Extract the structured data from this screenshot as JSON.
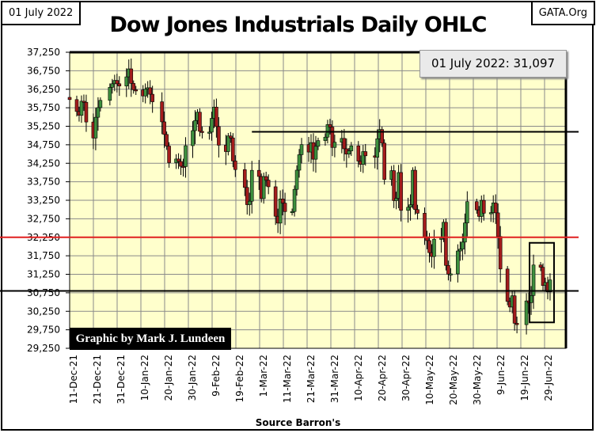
{
  "header": {
    "date_label": "01 July 2022",
    "site": "GATA.Org",
    "title": "Dow Jones Industrials Daily OHLC"
  },
  "footer": {
    "source": "Source Barron's",
    "credit": "Graphic by Mark J. Lundeen"
  },
  "last_value_box": "01 July 2022: 31,097",
  "colors": {
    "background": "#ffffcc",
    "up": "#3d8f3d",
    "down": "#a31c1c",
    "red_line": "#e02020"
  },
  "chart_data": {
    "type": "ohlc",
    "title": "Dow Jones Industrials Daily OHLC",
    "ylim": [
      29250,
      37250
    ],
    "yticks": [
      "37,250",
      "36,750",
      "36,250",
      "35,750",
      "35,250",
      "34,750",
      "34,250",
      "33,750",
      "33,250",
      "32,750",
      "32,250",
      "31,750",
      "31,250",
      "30,750",
      "30,250",
      "29,750",
      "29,250"
    ],
    "xticks": [
      "11-Dec-21",
      "21-Dec-21",
      "31-Dec-21",
      "10-Jan-22",
      "20-Jan-22",
      "30-Jan-22",
      "9-Feb-22",
      "19-Feb-22",
      "1-Mar-22",
      "11-Mar-22",
      "21-Mar-22",
      "31-Mar-22",
      "10-Apr-22",
      "20-Apr-22",
      "30-Apr-22",
      "10-May-22",
      "20-May-22",
      "30-May-22",
      "9-Jun-22",
      "19-Jun-22",
      "29-Jun-22"
    ],
    "grid": true,
    "reference_lines": [
      {
        "value": 35100,
        "color": "black",
        "from": "2022-02-24"
      },
      {
        "value": 32250,
        "color": "red"
      },
      {
        "value": 30800,
        "color": "black"
      }
    ],
    "highlight_box": {
      "from": "2022-06-24",
      "to": "2022-07-01",
      "low": 29950,
      "high": 32100
    },
    "closes": [
      [
        "2021-12-10",
        35971
      ],
      [
        "2021-12-13",
        35650
      ],
      [
        "2021-12-14",
        35545
      ],
      [
        "2021-12-15",
        35927
      ],
      [
        "2021-12-16",
        35898
      ],
      [
        "2021-12-17",
        35365
      ],
      [
        "2021-12-20",
        34932
      ],
      [
        "2021-12-21",
        35493
      ],
      [
        "2021-12-22",
        35754
      ],
      [
        "2021-12-23",
        35950
      ],
      [
        "2021-12-27",
        36302
      ],
      [
        "2021-12-28",
        36398
      ],
      [
        "2021-12-29",
        36488
      ],
      [
        "2021-12-30",
        36398
      ],
      [
        "2021-12-31",
        36338
      ],
      [
        "2022-01-03",
        36585
      ],
      [
        "2022-01-04",
        36800
      ],
      [
        "2022-01-05",
        36408
      ],
      [
        "2022-01-06",
        36236
      ],
      [
        "2022-01-07",
        36232
      ],
      [
        "2022-01-10",
        36069
      ],
      [
        "2022-01-11",
        36252
      ],
      [
        "2022-01-12",
        36290
      ],
      [
        "2022-01-13",
        36114
      ],
      [
        "2022-01-14",
        35912
      ],
      [
        "2022-01-18",
        35369
      ],
      [
        "2022-01-19",
        35029
      ],
      [
        "2022-01-20",
        34715
      ],
      [
        "2022-01-21",
        34265
      ],
      [
        "2022-01-24",
        34365
      ],
      [
        "2022-01-25",
        34298
      ],
      [
        "2022-01-26",
        34168
      ],
      [
        "2022-01-27",
        34160
      ],
      [
        "2022-01-28",
        34725
      ],
      [
        "2022-01-31",
        35132
      ],
      [
        "2022-02-01",
        35405
      ],
      [
        "2022-02-02",
        35630
      ],
      [
        "2022-02-03",
        35112
      ],
      [
        "2022-02-04",
        35090
      ],
      [
        "2022-02-07",
        35092
      ],
      [
        "2022-02-08",
        35463
      ],
      [
        "2022-02-09",
        35768
      ],
      [
        "2022-02-10",
        35242
      ],
      [
        "2022-02-11",
        34738
      ],
      [
        "2022-02-14",
        34566
      ],
      [
        "2022-02-15",
        34988
      ],
      [
        "2022-02-16",
        34935
      ],
      [
        "2022-02-17",
        34312
      ],
      [
        "2022-02-18",
        34079
      ],
      [
        "2022-02-22",
        33597
      ],
      [
        "2022-02-23",
        33132
      ],
      [
        "2022-02-24",
        33224
      ],
      [
        "2022-02-25",
        34059
      ],
      [
        "2022-02-28",
        33893
      ],
      [
        "2022-03-01",
        33295
      ],
      [
        "2022-03-02",
        33891
      ],
      [
        "2022-03-03",
        33795
      ],
      [
        "2022-03-04",
        33615
      ],
      [
        "2022-03-07",
        32818
      ],
      [
        "2022-03-08",
        32633
      ],
      [
        "2022-03-09",
        33286
      ],
      [
        "2022-03-10",
        33174
      ],
      [
        "2022-03-11",
        32944
      ],
      [
        "2022-03-14",
        32946
      ],
      [
        "2022-03-15",
        33545
      ],
      [
        "2022-03-16",
        34063
      ],
      [
        "2022-03-17",
        34481
      ],
      [
        "2022-03-18",
        34755
      ],
      [
        "2022-03-21",
        34553
      ],
      [
        "2022-03-22",
        34808
      ],
      [
        "2022-03-23",
        34359
      ],
      [
        "2022-03-24",
        34708
      ],
      [
        "2022-03-25",
        34862
      ],
      [
        "2022-03-28",
        34956
      ],
      [
        "2022-03-29",
        35295
      ],
      [
        "2022-03-30",
        35229
      ],
      [
        "2022-03-31",
        34678
      ],
      [
        "2022-04-01",
        34818
      ],
      [
        "2022-04-04",
        34922
      ],
      [
        "2022-04-05",
        34641
      ],
      [
        "2022-04-06",
        34497
      ],
      [
        "2022-04-07",
        34584
      ],
      [
        "2022-04-08",
        34721
      ],
      [
        "2022-04-11",
        34308
      ],
      [
        "2022-04-12",
        34221
      ],
      [
        "2022-04-13",
        34565
      ],
      [
        "2022-04-14",
        34452
      ],
      [
        "2022-04-18",
        34412
      ],
      [
        "2022-04-19",
        34912
      ],
      [
        "2022-04-20",
        35161
      ],
      [
        "2022-04-21",
        34793
      ],
      [
        "2022-04-22",
        33811
      ],
      [
        "2022-04-25",
        34050
      ],
      [
        "2022-04-26",
        33241
      ],
      [
        "2022-04-27",
        33302
      ],
      [
        "2022-04-28",
        34000
      ],
      [
        "2022-04-29",
        32977
      ],
      [
        "2022-05-02",
        33062
      ],
      [
        "2022-05-03",
        33129
      ],
      [
        "2022-05-04",
        34061
      ],
      [
        "2022-05-05",
        32998
      ],
      [
        "2022-05-06",
        32900
      ],
      [
        "2022-05-09",
        32246
      ],
      [
        "2022-05-10",
        32161
      ],
      [
        "2022-05-11",
        31834
      ],
      [
        "2022-05-12",
        31730
      ],
      [
        "2022-05-13",
        32197
      ],
      [
        "2022-05-16",
        32224
      ],
      [
        "2022-05-17",
        32655
      ],
      [
        "2022-05-18",
        31490
      ],
      [
        "2022-05-19",
        31254
      ],
      [
        "2022-05-20",
        31262
      ],
      [
        "2022-05-23",
        31880
      ],
      [
        "2022-05-24",
        31929
      ],
      [
        "2022-05-25",
        32120
      ],
      [
        "2022-05-26",
        32637
      ],
      [
        "2022-05-27",
        33213
      ],
      [
        "2022-05-31",
        32990
      ],
      [
        "2022-06-01",
        32813
      ],
      [
        "2022-06-02",
        33249
      ],
      [
        "2022-06-03",
        32900
      ],
      [
        "2022-06-06",
        32916
      ],
      [
        "2022-06-07",
        33180
      ],
      [
        "2022-06-08",
        32910
      ],
      [
        "2022-06-09",
        32273
      ],
      [
        "2022-06-10",
        31393
      ],
      [
        "2022-06-13",
        30517
      ],
      [
        "2022-06-14",
        30365
      ],
      [
        "2022-06-15",
        30669
      ],
      [
        "2022-06-16",
        29927
      ],
      [
        "2022-06-17",
        29889
      ],
      [
        "2022-06-21",
        30530
      ],
      [
        "2022-06-22",
        30483
      ],
      [
        "2022-06-23",
        30677
      ],
      [
        "2022-06-24",
        31501
      ],
      [
        "2022-06-27",
        31439
      ],
      [
        "2022-06-28",
        30947
      ],
      [
        "2022-06-29",
        31029
      ],
      [
        "2022-06-30",
        30775
      ],
      [
        "2022-07-01",
        31097
      ]
    ]
  }
}
